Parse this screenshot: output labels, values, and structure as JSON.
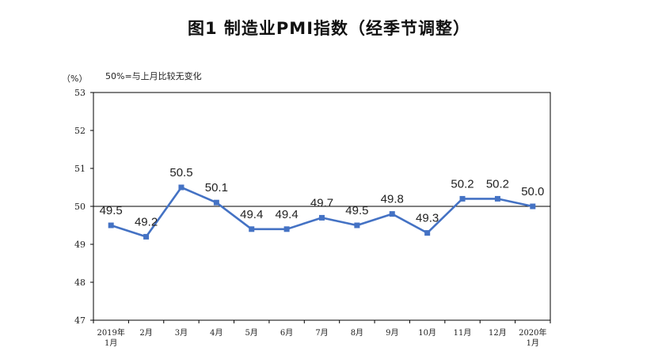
{
  "chart_data": {
    "type": "line",
    "title": "图1  制造业PMI指数（经季节调整）",
    "unit_label": "（%）",
    "note": "50%=与上月比较无变化",
    "categories": [
      "2019年|1月",
      "2月",
      "3月",
      "4月",
      "5月",
      "6月",
      "7月",
      "8月",
      "9月",
      "10月",
      "11月",
      "12月",
      "2020年|1月"
    ],
    "series": [
      {
        "values": [
          49.5,
          49.2,
          50.5,
          50.1,
          49.4,
          49.4,
          49.7,
          49.5,
          49.8,
          49.3,
          50.2,
          50.2,
          50.0
        ],
        "labels": [
          "49.5",
          "49.2",
          "50.5",
          "50.1",
          "49.4",
          "49.4",
          "49.7",
          "49.5",
          "49.8",
          "49.3",
          "50.2",
          "50.2",
          "50.0"
        ]
      }
    ],
    "ylim": [
      47,
      53
    ],
    "yticks": [
      "47",
      "48",
      "49",
      "50",
      "51",
      "52",
      "53"
    ],
    "reference_line": 50,
    "grid": false,
    "colors": {
      "line": "#4472C4",
      "reference": "#000000",
      "frame": "#000000"
    }
  }
}
